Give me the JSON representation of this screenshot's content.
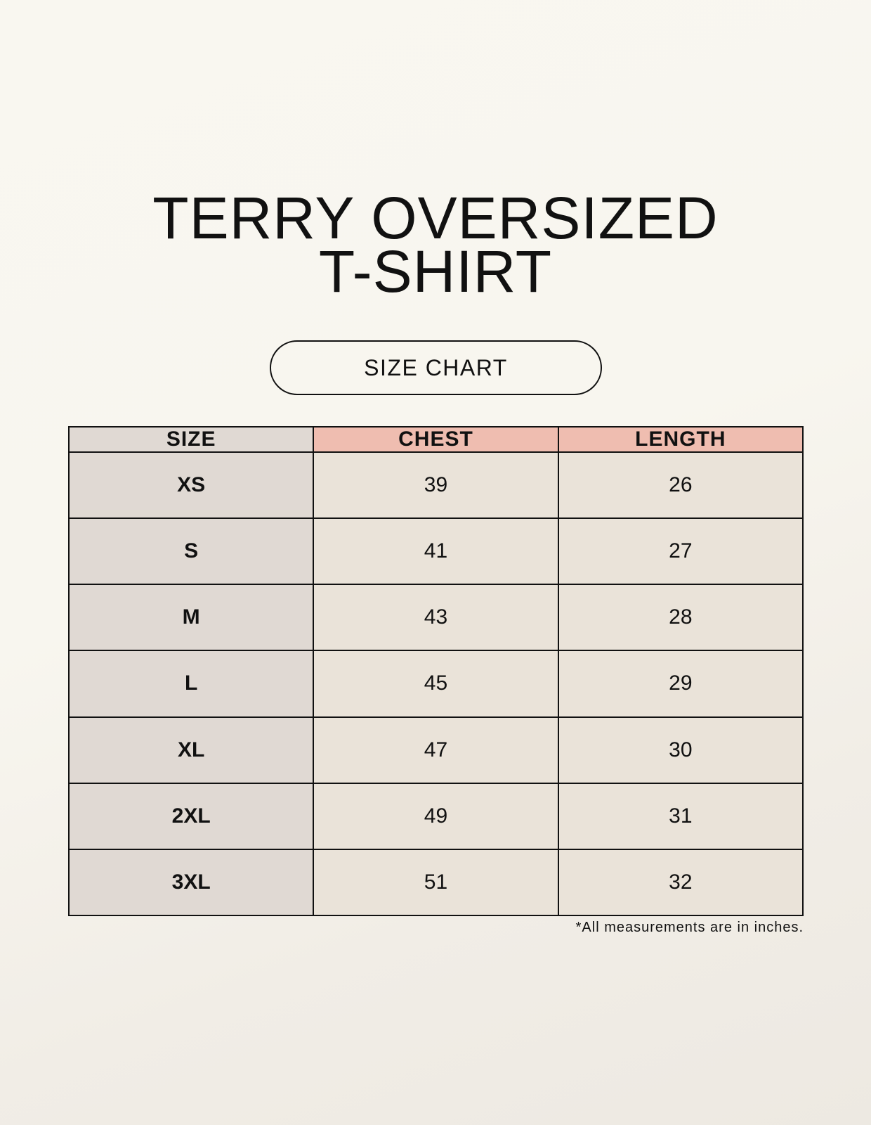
{
  "title_line1": "TERRY OVERSIZED",
  "title_line2": "T-SHIRT",
  "badge": "SIZE CHART",
  "table": {
    "headers": [
      "SIZE",
      "CHEST",
      "LENGTH"
    ],
    "rows": [
      [
        "XS",
        "39",
        "26"
      ],
      [
        "S",
        "41",
        "27"
      ],
      [
        "M",
        "43",
        "28"
      ],
      [
        "L",
        "45",
        "29"
      ],
      [
        "XL",
        "47",
        "30"
      ],
      [
        "2XL",
        "49",
        "31"
      ],
      [
        "3XL",
        "51",
        "32"
      ]
    ]
  },
  "footnote": "*All measurements are in inches.",
  "colors": {
    "header_accent": "#efbdb0",
    "size_column": "#e0d9d3",
    "cell": "#eae3d9"
  }
}
